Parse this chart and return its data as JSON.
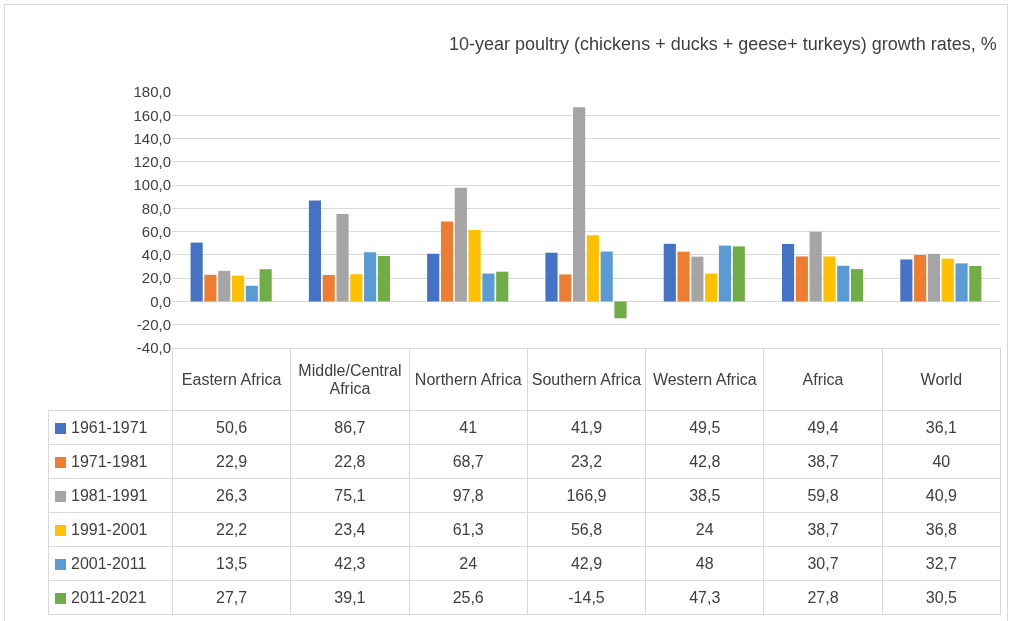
{
  "chart_data": {
    "type": "bar",
    "title": "10-year poultry (chickens + ducks + geese+ turkeys) growth rates, %",
    "categories": [
      "Eastern Africa",
      "Middle/Central Africa",
      "Northern Africa",
      "Southern Africa",
      "Western Africa",
      "Africa",
      "World"
    ],
    "series": [
      {
        "name": "1961-1971",
        "color": "#4472c4",
        "values": [
          50.6,
          86.7,
          41,
          41.9,
          49.5,
          49.4,
          36.1
        ],
        "value_labels": [
          "50,6",
          "86,7",
          "41",
          "41,9",
          "49,5",
          "49,4",
          "36,1"
        ]
      },
      {
        "name": "1971-1981",
        "color": "#ed7d31",
        "values": [
          22.9,
          22.8,
          68.7,
          23.2,
          42.8,
          38.7,
          40
        ],
        "value_labels": [
          "22,9",
          "22,8",
          "68,7",
          "23,2",
          "42,8",
          "38,7",
          "40"
        ]
      },
      {
        "name": "1981-1991",
        "color": "#a5a5a5",
        "values": [
          26.3,
          75.1,
          97.8,
          166.9,
          38.5,
          59.8,
          40.9
        ],
        "value_labels": [
          "26,3",
          "75,1",
          "97,8",
          "166,9",
          "38,5",
          "59,8",
          "40,9"
        ]
      },
      {
        "name": "1991-2001",
        "color": "#ffc000",
        "values": [
          22.2,
          23.4,
          61.3,
          56.8,
          24,
          38.7,
          36.8
        ],
        "value_labels": [
          "22,2",
          "23,4",
          "61,3",
          "56,8",
          "24",
          "38,7",
          "36,8"
        ]
      },
      {
        "name": "2001-2011",
        "color": "#5b9bd5",
        "values": [
          13.5,
          42.3,
          24,
          42.9,
          48,
          30.7,
          32.7
        ],
        "value_labels": [
          "13,5",
          "42,3",
          "24",
          "42,9",
          "48",
          "30,7",
          "32,7"
        ]
      },
      {
        "name": "2011-2021",
        "color": "#70ad47",
        "values": [
          27.7,
          39.1,
          25.6,
          -14.5,
          47.3,
          27.8,
          30.5
        ],
        "value_labels": [
          "27,7",
          "39,1",
          "25,6",
          "-14,5",
          "47,3",
          "27,8",
          "30,5"
        ]
      }
    ],
    "ylim": [
      -40,
      180
    ],
    "yticks": [
      {
        "value": -40,
        "label": "-40,0"
      },
      {
        "value": -20,
        "label": "-20,0"
      },
      {
        "value": 0,
        "label": "0,0"
      },
      {
        "value": 20,
        "label": "20,0"
      },
      {
        "value": 40,
        "label": "40,0"
      },
      {
        "value": 60,
        "label": "60,0"
      },
      {
        "value": 80,
        "label": "80,0"
      },
      {
        "value": 100,
        "label": "100,0"
      },
      {
        "value": 120,
        "label": "120,0"
      },
      {
        "value": 140,
        "label": "140,0"
      },
      {
        "value": 160,
        "label": "160,0"
      },
      {
        "value": 180,
        "label": "180,0"
      }
    ],
    "grid": "y",
    "legend": "bottom"
  }
}
